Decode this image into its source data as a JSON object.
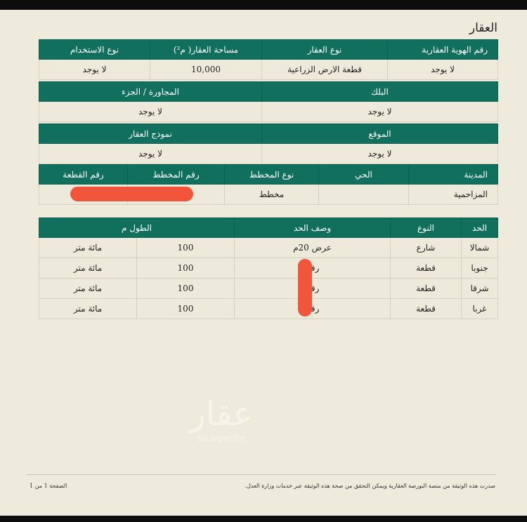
{
  "section_title": "العقار",
  "table1": {
    "row1": {
      "headers": [
        "رقم الهوية العقارية",
        "نوع العقار",
        "مساحة العقار( م²)",
        "نوع الاستخدام"
      ],
      "values": [
        "لا يوجد",
        "قطعة الارض الزراعية",
        "10,000",
        "لا يوجد"
      ]
    },
    "row2": {
      "headers": [
        "البلك",
        "المجاورة / الجزء"
      ],
      "values": [
        "لا يوجد",
        "لا يوجد"
      ]
    },
    "row3": {
      "headers": [
        "الموقع",
        "نموذج العقار"
      ],
      "values": [
        "لا يوجد",
        "لا يوجد"
      ]
    },
    "row4": {
      "headers": [
        "المدينة",
        "الحي",
        "نوع المخطط",
        "رقم المخطط",
        "رقم القطعة"
      ],
      "values": [
        "المزاحمية",
        "",
        "مخطط",
        "",
        ""
      ]
    }
  },
  "table2": {
    "headers": [
      "الحد",
      "النوع",
      "وصف الحد",
      "الطول م"
    ],
    "rows": [
      [
        "شمالا",
        "شارع",
        "عرض 20م",
        "100",
        "مائة متر"
      ],
      [
        "جنوبا",
        "قطعة",
        "رقم",
        "100",
        "مائة متر"
      ],
      [
        "شرقا",
        "قطعة",
        "رقم",
        "100",
        "مائة متر"
      ],
      [
        "غربا",
        "قطعة",
        "رقم",
        "100",
        "مائة متر"
      ]
    ]
  },
  "watermark": {
    "logo_text": "عقار",
    "site": "sa.aqar.fm"
  },
  "footer": {
    "note": "صدرت هذه الوثيقة من منصة البورصة العقارية ويمكن التحقق من صحة هذه الوثيقة عبر خدمات وزارة العدل.",
    "page": "الصفحة 1 من 1"
  },
  "colors": {
    "header_green": "#11705d",
    "redaction": "#f2563a",
    "paper": "#efebdc"
  }
}
